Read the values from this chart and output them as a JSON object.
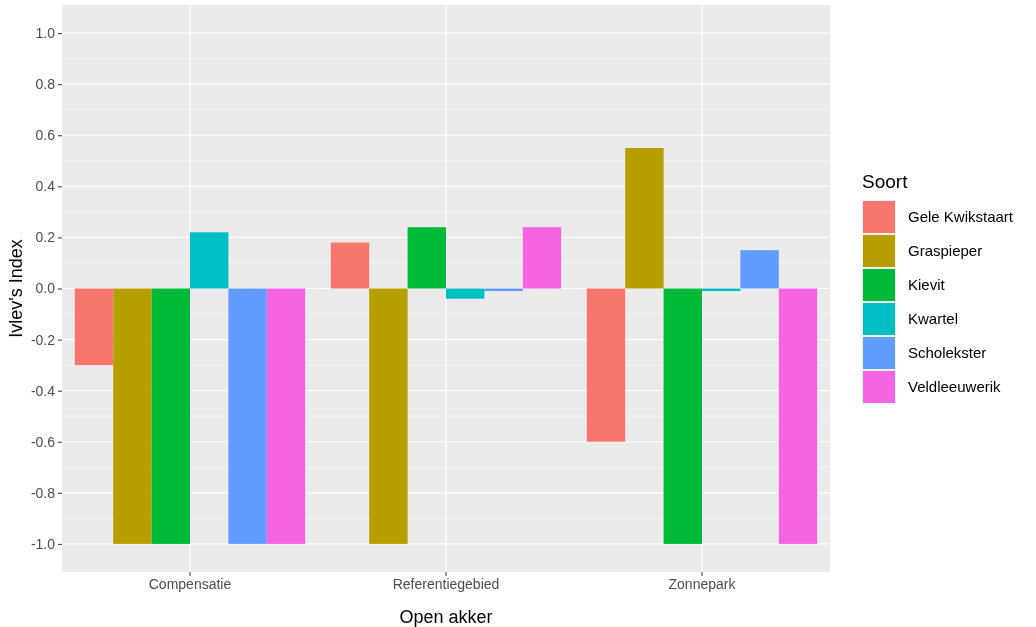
{
  "chart_data": {
    "type": "bar",
    "xlabel": "Open akker",
    "ylabel": "Ivlev's Index",
    "legend_title": "Soort",
    "categories": [
      "Compensatie",
      "Referentiegebied",
      "Zonnepark"
    ],
    "series": [
      {
        "name": "Gele Kwikstaart",
        "color": "#f8766d",
        "values": [
          -0.3,
          0.18,
          -0.6
        ]
      },
      {
        "name": "Graspieper",
        "color": "#b79f00",
        "values": [
          -1,
          -1,
          0.55
        ]
      },
      {
        "name": "Kievit",
        "color": "#00ba38",
        "values": [
          -1,
          0.24,
          -1
        ]
      },
      {
        "name": "Kwartel",
        "color": "#00bfc4",
        "values": [
          0.22,
          -0.04,
          -0.01
        ]
      },
      {
        "name": "Scholekster",
        "color": "#619cff",
        "values": [
          -1,
          -0.01,
          0.15
        ]
      },
      {
        "name": "Veldleeuwerik",
        "color": "#f564e3",
        "values": [
          -1,
          0.24,
          -1
        ]
      }
    ],
    "ylim": [
      -1.11,
      1.11
    ],
    "yticks": [
      {
        "value": -1,
        "label": "-1.0"
      },
      {
        "value": -0.8,
        "label": "-0.8"
      },
      {
        "value": -0.6,
        "label": "-0.6"
      },
      {
        "value": -0.4,
        "label": "-0.4"
      },
      {
        "value": -0.2,
        "label": "-0.2"
      },
      {
        "value": 0,
        "label": "0.0"
      },
      {
        "value": 0.2,
        "label": "0.2"
      },
      {
        "value": 0.4,
        "label": "0.4"
      },
      {
        "value": 0.6,
        "label": "0.6"
      },
      {
        "value": 0.8,
        "label": "0.8"
      },
      {
        "value": 1,
        "label": "1.0"
      }
    ],
    "grid": true,
    "legend": "right"
  }
}
